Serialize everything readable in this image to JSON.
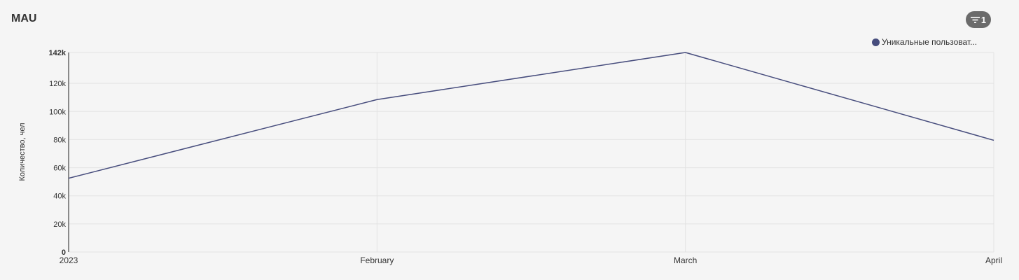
{
  "header": {
    "title": "MAU",
    "filter_count": "1",
    "filter_icon": "filter-icon"
  },
  "chart_data": {
    "type": "line",
    "title": "MAU",
    "ylabel": "Количество, чел",
    "xlabel": "",
    "categories": [
      "2023",
      "February",
      "March",
      "April"
    ],
    "series": [
      {
        "name": "Уникальные пользоват...",
        "values": [
          52500,
          108500,
          142000,
          79500
        ],
        "color": "#474d7d"
      }
    ],
    "ylim": [
      0,
      142000
    ],
    "y_ticks": [
      0,
      20000,
      40000,
      60000,
      80000,
      100000,
      120000,
      142000
    ],
    "y_tick_labels": [
      "0",
      "20k",
      "40k",
      "60k",
      "80k",
      "100k",
      "120k",
      "142k"
    ],
    "grid": true,
    "legend_position": "top-right"
  }
}
